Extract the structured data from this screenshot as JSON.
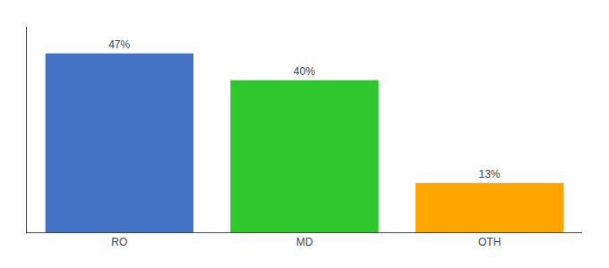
{
  "chart_data": {
    "type": "bar",
    "categories": [
      "RO",
      "MD",
      "OTH"
    ],
    "values": [
      47,
      40,
      13
    ],
    "value_labels": [
      "47%",
      "40%",
      "13%"
    ],
    "colors": [
      "#4472c4",
      "#2ec82e",
      "#ffa500"
    ],
    "ylim": [
      0,
      54
    ],
    "data_labels": true,
    "tick_labels": "x",
    "grid": false
  }
}
